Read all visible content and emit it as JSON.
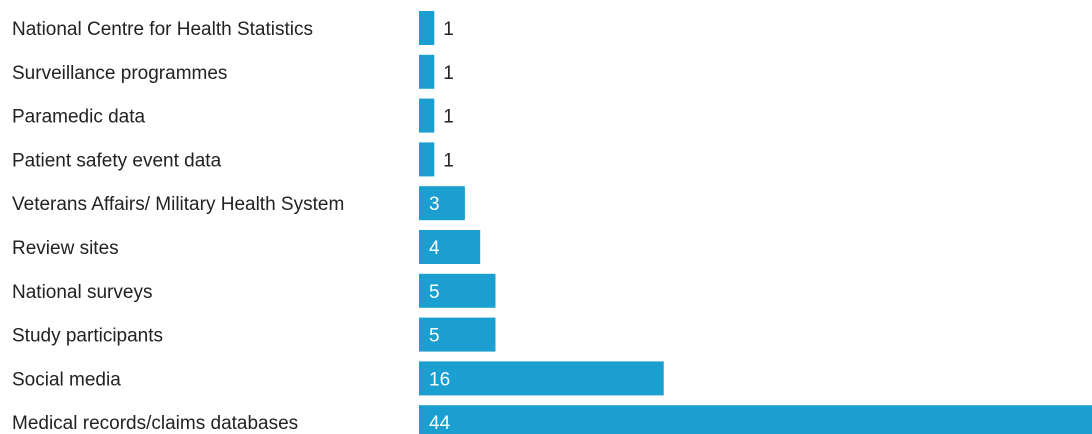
{
  "chart_data": {
    "type": "bar",
    "orientation": "horizontal",
    "categories": [
      "National Centre for Health Statistics",
      "Surveillance programmes",
      "Paramedic data",
      "Patient safety event data",
      "Veterans Affairs/ Military Health System",
      "Review sites",
      "National surveys",
      "Study participants",
      "Social media",
      "Medical records/claims databases"
    ],
    "values": [
      1,
      1,
      1,
      1,
      3,
      4,
      5,
      5,
      16,
      44
    ],
    "value_labels": [
      "1",
      "1",
      "1",
      "1",
      "3",
      "4",
      "5",
      "5",
      "16",
      "44"
    ],
    "title": "",
    "xlabel": "",
    "ylabel": "",
    "xlim": [
      0,
      44
    ],
    "grid": false,
    "legend": "none",
    "colors": {
      "bar": "#1a9fd0",
      "label_inside": "#ffffff",
      "label_outside": "#222222",
      "category_text": "#222222"
    }
  }
}
